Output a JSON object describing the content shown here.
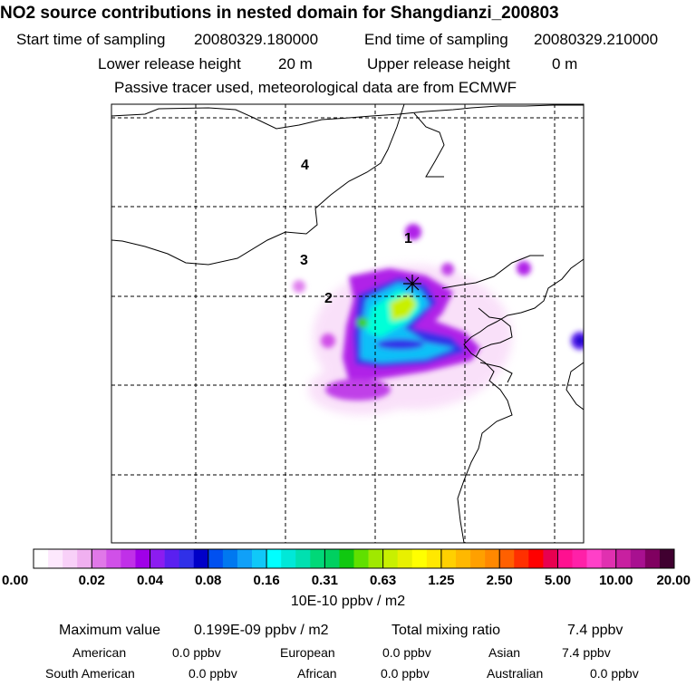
{
  "chart_data": {
    "type": "heatmap",
    "title": "NO2 source contributions in nested domain for Shangdianzi_200803",
    "subtitle": {
      "start_label": "Start time of sampling",
      "start_value": "20080329.180000",
      "end_label": "End time of sampling",
      "end_value": "20080329.210000",
      "lower_label": "Lower release height",
      "lower_value": "20 m",
      "upper_label": "Upper release height",
      "upper_value": "0 m",
      "note": "Passive tracer used, meteorological data are from ECMWF"
    },
    "region_labels": [
      "1",
      "2",
      "3",
      "4"
    ],
    "colorbar": {
      "ticks": [
        "0.00",
        "0.02",
        "0.04",
        "0.08",
        "0.16",
        "0.31",
        "0.63",
        "1.25",
        "2.50",
        "5.00",
        "10.00",
        "20.00"
      ],
      "unit": "10E-10 ppbv / m2",
      "colors": [
        "#ffffff",
        "#fde8fd",
        "#f8d0f8",
        "#f0b0f0",
        "#e078e8",
        "#d050e8",
        "#c030e8",
        "#a000e8",
        "#8c1cf0",
        "#5a20f0",
        "#3030e8",
        "#0000c8",
        "#0050f0",
        "#0078f0",
        "#10a0f8",
        "#10c8f8",
        "#00ffff",
        "#00e8d8",
        "#00e0b0",
        "#00d878",
        "#00d060",
        "#10c810",
        "#60e000",
        "#a0e800",
        "#c8f000",
        "#e8f000",
        "#ffff00",
        "#ffe800",
        "#ffd000",
        "#ffb800",
        "#ffa000",
        "#ff8800",
        "#ff6000",
        "#ff3000",
        "#ff0000",
        "#e80050",
        "#ff1090",
        "#ff20a8",
        "#ff40c8",
        "#e030b0",
        "#c820a0",
        "#a81090",
        "#800060",
        "#400030"
      ]
    }
  },
  "footer": {
    "max_label": "Maximum value",
    "max_value": "0.199E-09 ppbv / m2",
    "total_label": "Total mixing ratio",
    "total_value": "7.4 ppbv",
    "sources": [
      {
        "name": "American",
        "value": "0.0 ppbv"
      },
      {
        "name": "European",
        "value": "0.0 ppbv"
      },
      {
        "name": "Asian",
        "value": "7.4 ppbv"
      },
      {
        "name": "South American",
        "value": "0.0 ppbv"
      },
      {
        "name": "African",
        "value": "0.0 ppbv"
      },
      {
        "name": "Australian",
        "value": "0.0 ppbv"
      }
    ]
  }
}
